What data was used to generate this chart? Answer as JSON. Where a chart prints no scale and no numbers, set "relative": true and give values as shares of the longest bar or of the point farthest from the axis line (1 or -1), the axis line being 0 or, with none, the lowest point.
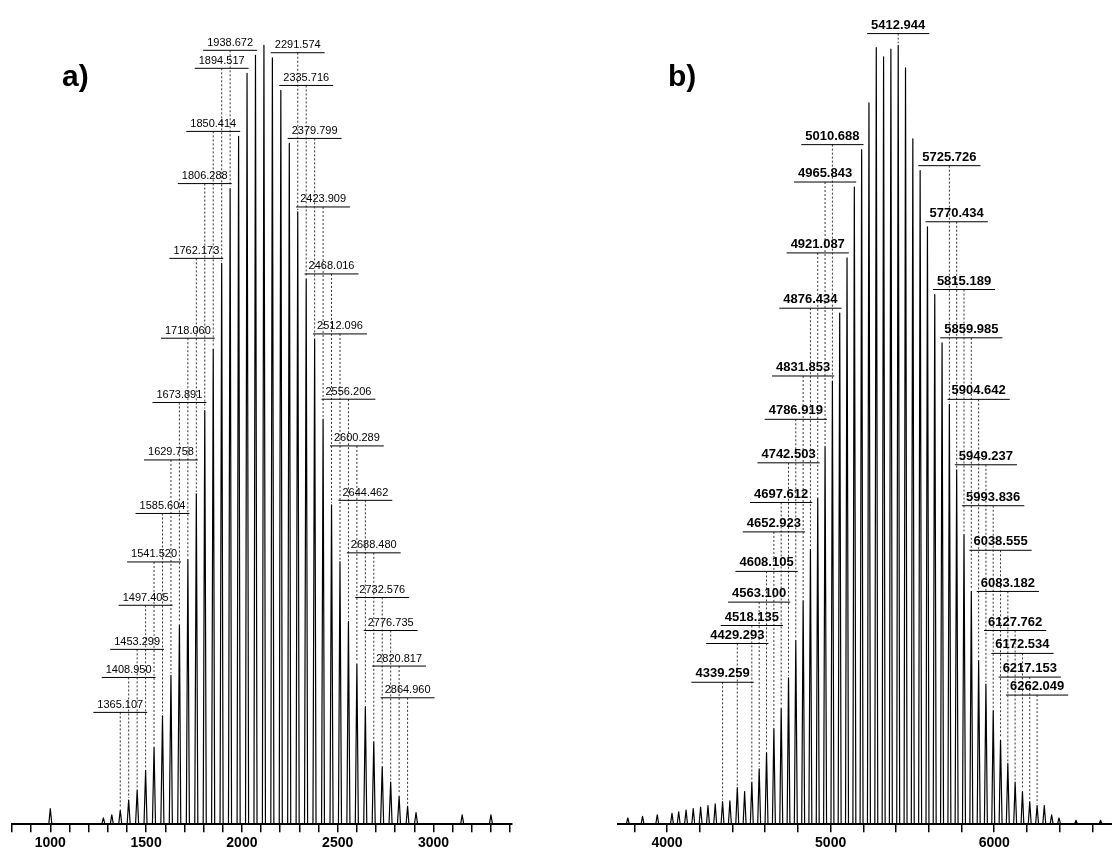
{
  "chart_data": [
    {
      "type": "line",
      "title": "a)",
      "relative": true,
      "xlim": [
        800,
        3410
      ],
      "xticks": [
        {
          "value": 800,
          "label": null
        },
        {
          "value": 900,
          "label": null
        },
        1000,
        {
          "value": 1100,
          "label": null
        },
        {
          "value": 1200,
          "label": null
        },
        {
          "value": 1300,
          "label": null
        },
        {
          "value": 1400,
          "label": null
        },
        1500,
        {
          "value": 1600,
          "label": null
        },
        {
          "value": 1700,
          "label": null
        },
        {
          "value": 1800,
          "label": null
        },
        {
          "value": 1900,
          "label": null
        },
        2000,
        {
          "value": 2100,
          "label": null
        },
        {
          "value": 2200,
          "label": null
        },
        {
          "value": 2300,
          "label": null
        },
        {
          "value": 2400,
          "label": null
        },
        2500,
        {
          "value": 2600,
          "label": null
        },
        {
          "value": 2700,
          "label": null
        },
        {
          "value": 2800,
          "label": null
        },
        {
          "value": 2900,
          "label": null
        },
        3000,
        {
          "value": 3100,
          "label": null
        },
        {
          "value": 3200,
          "label": null
        },
        {
          "value": 3300,
          "label": null
        },
        {
          "value": 3400,
          "label": null
        }
      ],
      "color": "#000000",
      "x": [
        800,
        992,
        1000,
        1008,
        1269,
        1277,
        1285,
        1313,
        1321,
        1329,
        1357,
        1365.107,
        1373,
        1401,
        1408.95,
        1417,
        1445,
        1453.299,
        1461,
        1489,
        1497.405,
        1505,
        1533,
        1541.52,
        1549,
        1577,
        1585.604,
        1593,
        1621,
        1629.758,
        1637,
        1665,
        1673.891,
        1681,
        1710,
        1718.06,
        1726,
        1754,
        1762.173,
        1770,
        1798,
        1806.288,
        1814,
        1842,
        1850.414,
        1858,
        1886,
        1894.517,
        1902,
        1930,
        1938.672,
        1946,
        1975,
        1982.8,
        1991,
        2019,
        2026.9,
        2035,
        2063,
        2071,
        2079,
        2107,
        2115.1,
        2123,
        2151,
        2159.2,
        2167,
        2195,
        2203.3,
        2211,
        2239,
        2247.5,
        2255,
        2283,
        2291.574,
        2299,
        2327,
        2335.716,
        2343,
        2371,
        2379.799,
        2387,
        2416,
        2423.909,
        2431,
        2460,
        2468.016,
        2476,
        2504,
        2512.096,
        2520,
        2548,
        2556.206,
        2564,
        2592,
        2600.289,
        2608,
        2636,
        2644.462,
        2652,
        2680,
        2688.48,
        2696,
        2724,
        2732.576,
        2740,
        2768,
        2776.735,
        2784,
        2812,
        2820.817,
        2828,
        2857,
        2864.96,
        2872,
        2901,
        2909,
        2917,
        3142,
        3150,
        3158,
        3292,
        3300,
        3308,
        3410
      ],
      "values": [
        0,
        0,
        0.02,
        0,
        0,
        0.008,
        0,
        0,
        0.012,
        0,
        0,
        0.018,
        0,
        0,
        0.031,
        0,
        0,
        0.044,
        0,
        0,
        0.069,
        0,
        0,
        0.099,
        0,
        0,
        0.139,
        0,
        0,
        0.191,
        0,
        0,
        0.256,
        0,
        0,
        0.34,
        0,
        0,
        0.424,
        0,
        0,
        0.531,
        0,
        0,
        0.61,
        0,
        0,
        0.72,
        0,
        0,
        0.816,
        0,
        0,
        0.883,
        0,
        0,
        0.964,
        0,
        0,
        0.987,
        0,
        0,
        1,
        0,
        0,
        0.984,
        0,
        0,
        0.942,
        0,
        0,
        0.874,
        0,
        0,
        0.786,
        0,
        0,
        0.7,
        0,
        0,
        0.623,
        0,
        0,
        0.52,
        0,
        0,
        0.41,
        0,
        0,
        0.337,
        0,
        0,
        0.26,
        0,
        0,
        0.206,
        0,
        0,
        0.151,
        0,
        0,
        0.106,
        0,
        0,
        0.074,
        0,
        0,
        0.054,
        0,
        0,
        0.036,
        0,
        0,
        0.023,
        0,
        0,
        0.015,
        0,
        0,
        0.012,
        0,
        0,
        0.012,
        0,
        0
      ],
      "annotations": [
        {
          "text": "1938.672",
          "x": 1938.672,
          "y": 0.816
        },
        {
          "text": "1894.517",
          "x": 1894.517,
          "y": 0.72
        },
        {
          "text": "1850.414",
          "x": 1850.414,
          "y": 0.61
        },
        {
          "text": "1806.288",
          "x": 1806.288,
          "y": 0.531
        },
        {
          "text": "1762.173",
          "x": 1762.173,
          "y": 0.424
        },
        {
          "text": "1718.060",
          "x": 1718.06,
          "y": 0.34
        },
        {
          "text": "1673.891",
          "x": 1673.891,
          "y": 0.256
        },
        {
          "text": "1629.758",
          "x": 1629.758,
          "y": 0.191
        },
        {
          "text": "1585.604",
          "x": 1585.604,
          "y": 0.139
        },
        {
          "text": "1541.520",
          "x": 1541.52,
          "y": 0.099
        },
        {
          "text": "1497.405",
          "x": 1497.405,
          "y": 0.069
        },
        {
          "text": "1453.299",
          "x": 1453.299,
          "y": 0.044
        },
        {
          "text": "1408.950",
          "x": 1408.95,
          "y": 0.031
        },
        {
          "text": "1365.107",
          "x": 1365.107,
          "y": 0.018
        },
        {
          "text": "2291.574",
          "x": 2291.574,
          "y": 0.786
        },
        {
          "text": "2335.716",
          "x": 2335.716,
          "y": 0.7
        },
        {
          "text": "2379.799",
          "x": 2379.799,
          "y": 0.623
        },
        {
          "text": "2423.909",
          "x": 2423.909,
          "y": 0.52
        },
        {
          "text": "2468.016",
          "x": 2468.016,
          "y": 0.41
        },
        {
          "text": "2512.096",
          "x": 2512.096,
          "y": 0.337
        },
        {
          "text": "2556.206",
          "x": 2556.206,
          "y": 0.26
        },
        {
          "text": "2600.289",
          "x": 2600.289,
          "y": 0.206
        },
        {
          "text": "2644.462",
          "x": 2644.462,
          "y": 0.151
        },
        {
          "text": "2688.480",
          "x": 2688.48,
          "y": 0.106
        },
        {
          "text": "2732.576",
          "x": 2732.576,
          "y": 0.074
        },
        {
          "text": "2776.735",
          "x": 2776.735,
          "y": 0.054
        },
        {
          "text": "2820.817",
          "x": 2820.817,
          "y": 0.036
        },
        {
          "text": "2864.960",
          "x": 2864.96,
          "y": 0.023
        }
      ]
    },
    {
      "type": "line",
      "title": "b)",
      "relative": true,
      "xlim": [
        3700,
        6720
      ],
      "xticks": [
        {
          "value": 3800,
          "label": null
        },
        4000,
        {
          "value": 4200,
          "label": null
        },
        {
          "value": 4400,
          "label": null
        },
        {
          "value": 4600,
          "label": null
        },
        {
          "value": 4800,
          "label": null
        },
        5000,
        {
          "value": 5200,
          "label": null
        },
        {
          "value": 5400,
          "label": null
        },
        {
          "value": 5600,
          "label": null
        },
        {
          "value": 5800,
          "label": null
        },
        6000,
        {
          "value": 6200,
          "label": null
        },
        {
          "value": 6400,
          "label": null
        },
        {
          "value": 6600,
          "label": null
        }
      ],
      "color": "#000000",
      "x": [
        3700,
        3751,
        3760,
        3769,
        3841,
        3850,
        3859,
        3931,
        3940,
        3949,
        4021,
        4030,
        4039,
        4062,
        4071,
        4080,
        4107,
        4116,
        4125,
        4151,
        4160,
        4169,
        4196,
        4205,
        4214,
        4241,
        4250,
        4259,
        4285,
        4294.5,
        4303,
        4330,
        4339.259,
        4348,
        4375,
        4384,
        4393,
        4420,
        4429.293,
        4438,
        4465,
        4474,
        4483,
        4509,
        4518.135,
        4527,
        4554,
        4563.1,
        4572,
        4599,
        4608.105,
        4617,
        4644,
        4652.923,
        4662,
        4689,
        4697.612,
        4707,
        4734,
        4742.503,
        4751,
        4778,
        4786.919,
        4796,
        4823,
        4831.853,
        4841,
        4867,
        4876.434,
        4885,
        4912,
        4921.087,
        4930,
        4957,
        4965.843,
        4975,
        5002,
        5010.688,
        5020,
        5046,
        5055.4,
        5064,
        5091,
        5100.1,
        5109,
        5136,
        5144.8,
        5154,
        5180,
        5189.5,
        5198,
        5225,
        5234.2,
        5243,
        5270,
        5278.9,
        5288,
        5315,
        5323.6,
        5333,
        5359,
        5368.3,
        5377,
        5404,
        5412.944,
        5422,
        5449,
        5457.7,
        5467,
        5493,
        5502.4,
        5511,
        5538,
        5547.1,
        5556,
        5583,
        5591.7,
        5601,
        5627,
        5636.4,
        5645,
        5672,
        5681.1,
        5690,
        5717,
        5725.726,
        5735,
        5761,
        5770.434,
        5779,
        5806,
        5815.189,
        5824,
        5851,
        5859.985,
        5869,
        5896,
        5904.642,
        5914,
        5940,
        5949.237,
        5958,
        5985,
        5993.836,
        6003,
        6030,
        6038.555,
        6048,
        6074,
        6083.182,
        6092,
        6119,
        6127.762,
        6137,
        6164,
        6172.534,
        6181,
        6208,
        6217.153,
        6226,
        6253,
        6262.049,
        6271,
        6297,
        6306,
        6315,
        6342,
        6351,
        6360,
        6387,
        6396,
        6405,
        6491,
        6500,
        6509,
        6641,
        6650,
        6659,
        6720
      ],
      "values": [
        0,
        0,
        0.008,
        0,
        0,
        0.01,
        0,
        0,
        0.012,
        0,
        0,
        0.014,
        0,
        0,
        0.016,
        0,
        0,
        0.018,
        0,
        0,
        0.02,
        0,
        0,
        0.022,
        0,
        0,
        0.024,
        0,
        0,
        0.026,
        0,
        0,
        0.029,
        0,
        0,
        0.03,
        0,
        0,
        0.047,
        0,
        0,
        0.042,
        0,
        0,
        0.054,
        0,
        0,
        0.071,
        0,
        0,
        0.092,
        0,
        0,
        0.123,
        0,
        0,
        0.149,
        0,
        0,
        0.188,
        0,
        0,
        0.236,
        0,
        0,
        0.287,
        0,
        0,
        0.353,
        0,
        0,
        0.419,
        0,
        0,
        0.485,
        0,
        0,
        0.569,
        0,
        0,
        0.656,
        0,
        0,
        0.727,
        0,
        0,
        0.818,
        0,
        0,
        0.866,
        0,
        0,
        0.926,
        0,
        0,
        0.997,
        0,
        0,
        0.985,
        0,
        0,
        0.995,
        0,
        0,
        1,
        0,
        0,
        0.971,
        0,
        0,
        0.88,
        0,
        0,
        0.839,
        0,
        0,
        0.767,
        0,
        0,
        0.68,
        0,
        0,
        0.618,
        0,
        0,
        0.539,
        0,
        0,
        0.455,
        0,
        0,
        0.372,
        0,
        0,
        0.299,
        0,
        0,
        0.21,
        0,
        0,
        0.18,
        0,
        0,
        0.146,
        0,
        0,
        0.108,
        0,
        0,
        0.078,
        0,
        0,
        0.054,
        0,
        0,
        0.042,
        0,
        0,
        0.029,
        0,
        0,
        0.024,
        0,
        0,
        0.024,
        0,
        0,
        0.012,
        0,
        0,
        0.008,
        0,
        0,
        0.005,
        0,
        0,
        0.005,
        0,
        0
      ],
      "annotations": [
        {
          "text": "5412.944",
          "x": 5412.944,
          "y": 1
        },
        {
          "text": "5010.688",
          "x": 5010.688,
          "y": 0.569
        },
        {
          "text": "4965.843",
          "x": 4965.843,
          "y": 0.485
        },
        {
          "text": "4921.087",
          "x": 4921.087,
          "y": 0.419
        },
        {
          "text": "4876.434",
          "x": 4876.434,
          "y": 0.353
        },
        {
          "text": "4831.853",
          "x": 4831.853,
          "y": 0.287
        },
        {
          "text": "4786.919",
          "x": 4786.919,
          "y": 0.236
        },
        {
          "text": "4742.503",
          "x": 4742.503,
          "y": 0.188
        },
        {
          "text": "4697.612",
          "x": 4697.612,
          "y": 0.149
        },
        {
          "text": "4652.923",
          "x": 4652.923,
          "y": 0.123
        },
        {
          "text": "4608.105",
          "x": 4608.105,
          "y": 0.092
        },
        {
          "text": "4563.100",
          "x": 4563.1,
          "y": 0.071
        },
        {
          "text": "4518.135",
          "x": 4518.135,
          "y": 0.054
        },
        {
          "text": "4429.293",
          "x": 4429.293,
          "y": 0.047
        },
        {
          "text": "4339.259",
          "x": 4339.259,
          "y": 0.029
        },
        {
          "text": "5725.726",
          "x": 5725.726,
          "y": 0.539
        },
        {
          "text": "5770.434",
          "x": 5770.434,
          "y": 0.455
        },
        {
          "text": "5815.189",
          "x": 5815.189,
          "y": 0.372
        },
        {
          "text": "5859.985",
          "x": 5859.985,
          "y": 0.299
        },
        {
          "text": "5904.642",
          "x": 5904.642,
          "y": 0.21
        },
        {
          "text": "5949.237",
          "x": 5949.237,
          "y": 0.18
        },
        {
          "text": "5993.836",
          "x": 5993.836,
          "y": 0.146
        },
        {
          "text": "6038.555",
          "x": 6038.555,
          "y": 0.108
        },
        {
          "text": "6083.182",
          "x": 6083.182,
          "y": 0.078
        },
        {
          "text": "6127.762",
          "x": 6127.762,
          "y": 0.054
        },
        {
          "text": "6172.534",
          "x": 6172.534,
          "y": 0.042
        },
        {
          "text": "6217.153",
          "x": 6217.153,
          "y": 0.029
        },
        {
          "text": "6262.049",
          "x": 6262.049,
          "y": 0.024
        }
      ]
    }
  ]
}
